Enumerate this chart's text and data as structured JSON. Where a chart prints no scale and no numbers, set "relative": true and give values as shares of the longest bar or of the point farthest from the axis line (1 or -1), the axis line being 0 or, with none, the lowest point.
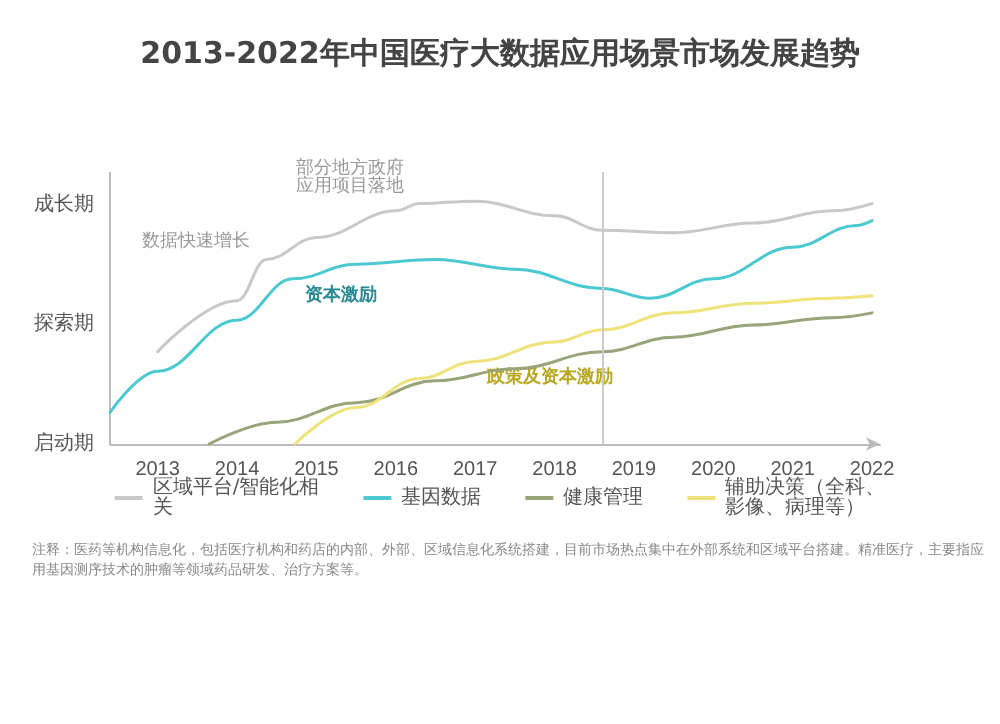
{
  "chart_data": {
    "type": "line",
    "title": "2013-2022年中国医疗大数据应用场景市场发展趋势",
    "relative": true,
    "xlim": [
      2012.4,
      2022.1
    ],
    "xticks": [
      2013,
      2014,
      2015,
      2016,
      2017,
      2018,
      2019,
      2020,
      2021,
      2022
    ],
    "series": [
      {
        "name": "区域平台/智能化相关",
        "color": "#c8c8c8",
        "x": [
          2013,
          2014,
          2014.37,
          2015,
          2016,
          2016.3,
          2017,
          2018,
          2018.6,
          2019.5,
          2020.5,
          2021.5,
          2022
        ],
        "values": [
          0.38,
          0.59,
          0.76,
          0.85,
          0.96,
          0.99,
          1,
          0.94,
          0.88,
          0.87,
          0.91,
          0.96,
          0.99
        ]
      },
      {
        "name": "基因数据",
        "color": "#4cc8d0",
        "x": [
          2012.4,
          2013,
          2014,
          2014.7,
          2015.5,
          2016.5,
          2017.5,
          2018.6,
          2019.2,
          2020,
          2021,
          2021.8,
          2022
        ],
        "values": [
          0.13,
          0.3,
          0.51,
          0.68,
          0.74,
          0.76,
          0.72,
          0.64,
          0.6,
          0.68,
          0.81,
          0.9,
          0.92
        ]
      },
      {
        "name": "健康管理",
        "color": "#98a47a",
        "x": [
          2013.65,
          2014.5,
          2015.5,
          2016.5,
          2017.5,
          2018.6,
          2019.5,
          2020.5,
          2021.5,
          2022
        ],
        "values": [
          0,
          0.09,
          0.17,
          0.26,
          0.31,
          0.38,
          0.44,
          0.49,
          0.52,
          0.54
        ]
      },
      {
        "name": "辅助决策（全科、影像、病理等）",
        "color": "#eee27a",
        "x": [
          2014.73,
          2015.5,
          2016.3,
          2017,
          2018,
          2018.6,
          2019.5,
          2020.5,
          2021.5,
          2022
        ],
        "values": [
          0,
          0.15,
          0.27,
          0.34,
          0.42,
          0.47,
          0.54,
          0.58,
          0.6,
          0.61
        ]
      }
    ],
    "ref_lines": [
      {
        "axis": "x",
        "value": 2018.6,
        "color": "#cccccc"
      }
    ],
    "annotations": [
      {
        "text": "数据快速增长",
        "x": 2014.37,
        "y": 0.76
      },
      {
        "text": "部分地方政府应用项目落地",
        "x": 2016.3,
        "y": 0.99
      },
      {
        "text": "资本激励",
        "x": 2014.7,
        "y": 0.68
      },
      {
        "text": "政策及资本激励",
        "x": 2017,
        "y": 0.34
      },
      "启动期",
      "探索期",
      "成长期",
      "注释：医药等机构信息化，包括医疗机构和药店的内部、外部、区域信息化系统搭建，目前市场热点集中在外部系统和区域平台搭建。精准医疗，主要指应用基因测序技术的肿瘤等领域药品研发、治疗方案等。"
    ],
    "grid": false,
    "legend": "bottom",
    "marker": "none",
    "line_style": "solid"
  }
}
